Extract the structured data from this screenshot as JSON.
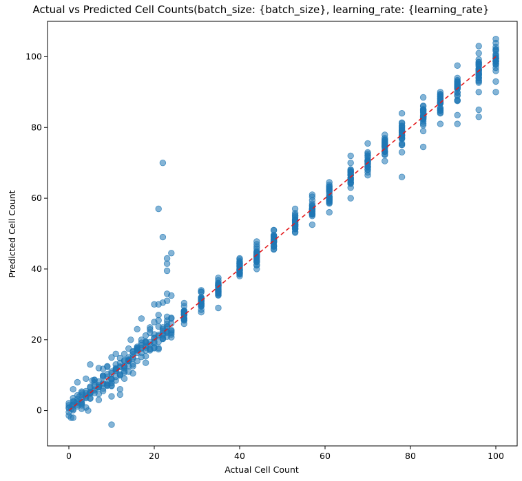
{
  "chart_data": {
    "type": "scatter",
    "title": "Actual vs Predicted Cell Counts(batch_size: {batch_size}, learning_rate: {learning_rate}",
    "xlabel": "Actual Cell Count",
    "ylabel": "Predicted Cell Count",
    "xlim": [
      -5,
      105
    ],
    "ylim": [
      -10,
      110
    ],
    "xticks": [
      0,
      20,
      40,
      60,
      80,
      100
    ],
    "yticks": [
      0,
      20,
      40,
      60,
      80,
      100
    ],
    "grid": false,
    "point_color": "#1f77b4",
    "point_opacity": 0.55,
    "reference_line": {
      "style": "dashed",
      "color": "#e31a1c",
      "from": [
        0,
        0
      ],
      "to": [
        100,
        100
      ]
    },
    "actual_levels": [
      0,
      1,
      2,
      3,
      4,
      5,
      6,
      7,
      8,
      9,
      10,
      11,
      12,
      13,
      14,
      15,
      16,
      17,
      18,
      19,
      20,
      21,
      22,
      23,
      24,
      27,
      31,
      35,
      40,
      44,
      48,
      53,
      57,
      61,
      66,
      70,
      74,
      78,
      83,
      87,
      91,
      96,
      100
    ],
    "series": [
      {
        "points": [
          [
            0.5,
            -2
          ],
          [
            0.6,
            0.5
          ],
          [
            0.8,
            1.5
          ],
          [
            1,
            3.5
          ],
          [
            1,
            6
          ],
          [
            1.2,
            2.5
          ],
          [
            2,
            8
          ],
          [
            2.5,
            4
          ],
          [
            3,
            0.5
          ],
          [
            3,
            2
          ],
          [
            3,
            5
          ],
          [
            4,
            9
          ],
          [
            4.5,
            0
          ],
          [
            5,
            3.5
          ],
          [
            5,
            6.5
          ],
          [
            5,
            13
          ],
          [
            5.5,
            8.5
          ],
          [
            6,
            7
          ],
          [
            7,
            3
          ],
          [
            7,
            12
          ],
          [
            8,
            5.5
          ],
          [
            8,
            9.5
          ],
          [
            9,
            7
          ],
          [
            9,
            12.5
          ],
          [
            10,
            -4
          ],
          [
            10,
            4
          ],
          [
            10,
            9
          ],
          [
            10,
            11
          ],
          [
            10,
            15
          ],
          [
            11,
            8.5
          ],
          [
            11,
            13
          ],
          [
            11,
            16
          ],
          [
            12,
            4.5
          ],
          [
            12,
            6
          ],
          [
            12,
            10
          ],
          [
            13,
            9
          ],
          [
            13,
            12
          ],
          [
            13,
            16
          ],
          [
            14,
            11
          ],
          [
            14,
            14
          ],
          [
            14,
            17.5
          ],
          [
            14.5,
            20
          ],
          [
            15,
            10.5
          ],
          [
            15,
            12.5
          ],
          [
            16,
            14
          ],
          [
            16,
            18
          ],
          [
            16,
            23
          ],
          [
            17,
            20
          ],
          [
            17,
            26
          ],
          [
            18,
            13.5
          ],
          [
            18,
            17
          ],
          [
            18,
            19.5
          ],
          [
            19,
            22
          ],
          [
            19,
            23.5
          ],
          [
            20,
            20.5
          ],
          [
            20,
            25
          ],
          [
            20,
            30
          ],
          [
            21,
            25.5
          ],
          [
            21,
            27
          ],
          [
            21,
            30
          ],
          [
            21,
            57
          ],
          [
            22,
            20.5
          ],
          [
            22,
            23.5
          ],
          [
            22,
            30.5
          ],
          [
            22,
            49
          ],
          [
            22,
            70
          ],
          [
            23,
            22
          ],
          [
            23,
            24.5
          ],
          [
            23,
            26.5
          ],
          [
            23,
            31
          ],
          [
            23,
            33
          ],
          [
            23,
            39.5
          ],
          [
            23,
            41.5
          ],
          [
            23,
            43
          ],
          [
            24,
            21.5
          ],
          [
            24,
            26
          ],
          [
            24,
            32.5
          ],
          [
            24,
            44.5
          ],
          [
            27,
            24.5
          ],
          [
            27,
            26
          ],
          [
            27,
            27.5
          ],
          [
            27,
            29.5
          ],
          [
            31,
            28.5
          ],
          [
            31,
            30
          ],
          [
            31,
            32
          ],
          [
            31,
            34
          ],
          [
            35,
            29
          ],
          [
            35,
            33
          ],
          [
            35,
            35
          ],
          [
            35,
            37.5
          ],
          [
            40,
            38
          ],
          [
            40,
            40
          ],
          [
            40,
            41.5
          ],
          [
            40,
            43
          ],
          [
            44,
            40
          ],
          [
            44,
            42
          ],
          [
            44,
            44.5
          ],
          [
            44,
            47
          ],
          [
            48,
            45.5
          ],
          [
            48,
            47.5
          ],
          [
            48,
            49.5
          ],
          [
            48,
            51
          ],
          [
            53,
            50.5
          ],
          [
            53,
            52.5
          ],
          [
            53,
            55
          ],
          [
            53,
            57
          ],
          [
            57,
            52.5
          ],
          [
            57,
            55
          ],
          [
            57,
            57.5
          ],
          [
            57,
            61
          ],
          [
            61,
            56
          ],
          [
            61,
            59
          ],
          [
            61,
            62
          ],
          [
            61,
            64.5
          ],
          [
            66,
            60
          ],
          [
            66,
            63
          ],
          [
            66,
            66.5
          ],
          [
            66,
            72
          ],
          [
            70,
            66.5
          ],
          [
            70,
            69
          ],
          [
            70,
            72
          ],
          [
            70,
            75.5
          ],
          [
            74,
            70.5
          ],
          [
            74,
            72.5
          ],
          [
            74,
            75
          ],
          [
            74,
            77
          ],
          [
            78,
            66
          ],
          [
            78,
            73
          ],
          [
            78,
            77
          ],
          [
            78,
            80
          ],
          [
            78,
            84
          ],
          [
            83,
            74.5
          ],
          [
            83,
            79
          ],
          [
            83,
            83
          ],
          [
            83,
            86
          ],
          [
            83,
            88.5
          ],
          [
            87,
            81
          ],
          [
            87,
            84
          ],
          [
            87,
            87
          ],
          [
            87,
            90
          ],
          [
            91,
            81
          ],
          [
            91,
            83.5
          ],
          [
            91,
            87.5
          ],
          [
            91,
            91
          ],
          [
            91,
            94
          ],
          [
            91,
            97.5
          ],
          [
            96,
            83
          ],
          [
            96,
            85
          ],
          [
            96,
            90
          ],
          [
            96,
            94
          ],
          [
            96,
            98
          ],
          [
            96,
            101
          ],
          [
            96,
            103
          ],
          [
            100,
            90
          ],
          [
            100,
            93
          ],
          [
            100,
            96
          ],
          [
            100,
            99
          ],
          [
            100,
            102
          ],
          [
            100,
            105
          ]
        ]
      }
    ]
  }
}
